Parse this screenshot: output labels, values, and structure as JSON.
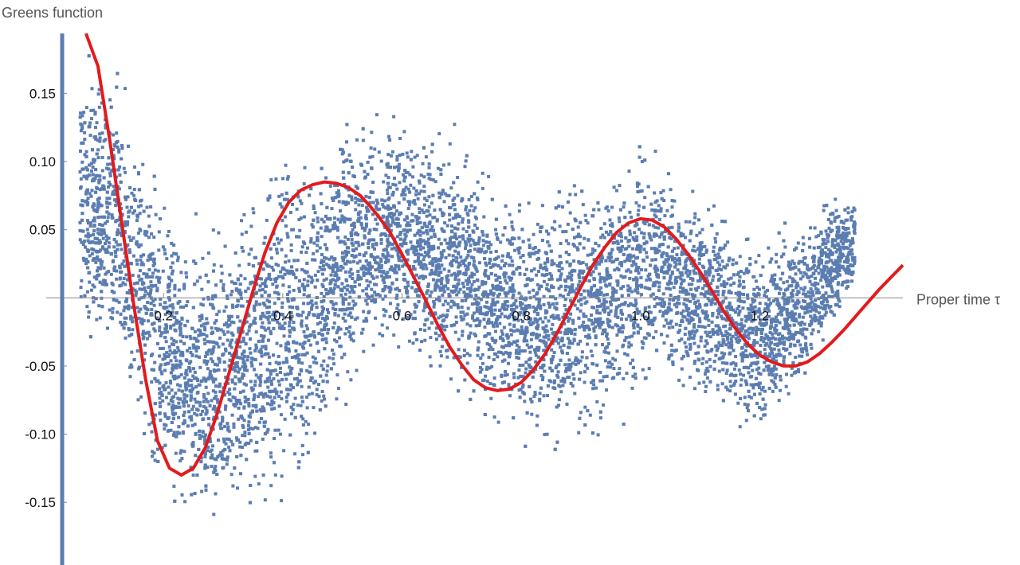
{
  "chart_data": {
    "type": "scatter",
    "title": "",
    "xlabel": "Proper time τ",
    "ylabel": "Greens function",
    "xlim": [
      0.03,
      1.44
    ],
    "ylim": [
      -0.196,
      0.194
    ],
    "x_ticks": [
      0.2,
      0.4,
      0.6,
      0.8,
      1.0,
      1.2
    ],
    "x_tick_labels": [
      "0.2",
      "0.4",
      "0.6",
      "0.8",
      "1.0",
      "1.2"
    ],
    "y_ticks": [
      -0.15,
      -0.1,
      -0.05,
      0.05,
      0.1,
      0.15
    ],
    "y_tick_labels": [
      "-0.15",
      "-0.10",
      "-0.05",
      "0.05",
      "0.10",
      "0.15"
    ],
    "grid": false,
    "series": [
      {
        "kind": "scatter",
        "color": "#5b7db1",
        "approx_point_count": 40000,
        "envelope": [
          {
            "x": 0.06,
            "y_low": -0.03,
            "y_high": 0.19
          },
          {
            "x": 0.12,
            "y_low": -0.07,
            "y_high": 0.18
          },
          {
            "x": 0.16,
            "y_low": -0.12,
            "y_high": 0.13
          },
          {
            "x": 0.2,
            "y_low": -0.16,
            "y_high": 0.09
          },
          {
            "x": 0.24,
            "y_low": -0.18,
            "y_high": 0.06
          },
          {
            "x": 0.28,
            "y_low": -0.19,
            "y_high": 0.06
          },
          {
            "x": 0.32,
            "y_low": -0.18,
            "y_high": 0.08
          },
          {
            "x": 0.36,
            "y_low": -0.17,
            "y_high": 0.1
          },
          {
            "x": 0.4,
            "y_low": -0.17,
            "y_high": 0.12
          },
          {
            "x": 0.44,
            "y_low": -0.15,
            "y_high": 0.12
          },
          {
            "x": 0.48,
            "y_low": -0.1,
            "y_high": 0.13
          },
          {
            "x": 0.52,
            "y_low": -0.07,
            "y_high": 0.14
          },
          {
            "x": 0.56,
            "y_low": -0.05,
            "y_high": 0.14
          },
          {
            "x": 0.6,
            "y_low": -0.04,
            "y_high": 0.14
          },
          {
            "x": 0.64,
            "y_low": -0.06,
            "y_high": 0.13
          },
          {
            "x": 0.68,
            "y_low": -0.08,
            "y_high": 0.13
          },
          {
            "x": 0.72,
            "y_low": -0.09,
            "y_high": 0.11
          },
          {
            "x": 0.76,
            "y_low": -0.1,
            "y_high": 0.09
          },
          {
            "x": 0.8,
            "y_low": -0.11,
            "y_high": 0.08
          },
          {
            "x": 0.84,
            "y_low": -0.12,
            "y_high": 0.09
          },
          {
            "x": 0.88,
            "y_low": -0.12,
            "y_high": 0.1
          },
          {
            "x": 0.92,
            "y_low": -0.11,
            "y_high": 0.11
          },
          {
            "x": 0.96,
            "y_low": -0.1,
            "y_high": 0.11
          },
          {
            "x": 1.0,
            "y_low": -0.08,
            "y_high": 0.12
          },
          {
            "x": 1.04,
            "y_low": -0.07,
            "y_high": 0.11
          },
          {
            "x": 1.08,
            "y_low": -0.08,
            "y_high": 0.1
          },
          {
            "x": 1.12,
            "y_low": -0.09,
            "y_high": 0.08
          },
          {
            "x": 1.16,
            "y_low": -0.1,
            "y_high": 0.06
          },
          {
            "x": 1.2,
            "y_low": -0.11,
            "y_high": 0.05
          },
          {
            "x": 1.24,
            "y_low": -0.09,
            "y_high": 0.06
          },
          {
            "x": 1.28,
            "y_low": -0.07,
            "y_high": 0.07
          },
          {
            "x": 1.32,
            "y_low": -0.03,
            "y_high": 0.08
          },
          {
            "x": 1.36,
            "y_low": 0.0,
            "y_high": 0.08
          }
        ]
      },
      {
        "kind": "line",
        "color": "#e31a1c",
        "x": [
          0.07,
          0.09,
          0.11,
          0.13,
          0.15,
          0.17,
          0.19,
          0.21,
          0.23,
          0.25,
          0.27,
          0.29,
          0.31,
          0.33,
          0.35,
          0.37,
          0.39,
          0.41,
          0.43,
          0.45,
          0.47,
          0.49,
          0.51,
          0.53,
          0.545,
          0.56,
          0.58,
          0.6,
          0.62,
          0.64,
          0.66,
          0.68,
          0.7,
          0.72,
          0.74,
          0.76,
          0.78,
          0.8,
          0.82,
          0.84,
          0.86,
          0.88,
          0.9,
          0.92,
          0.94,
          0.96,
          0.98,
          1.0,
          1.02,
          1.04,
          1.06,
          1.08,
          1.1,
          1.12,
          1.14,
          1.16,
          1.18,
          1.2,
          1.22,
          1.24,
          1.26,
          1.28,
          1.3,
          1.32,
          1.34,
          1.36,
          1.38,
          1.4,
          1.42,
          1.44
        ],
        "y": [
          0.215,
          0.17,
          0.115,
          0.055,
          -0.005,
          -0.06,
          -0.105,
          -0.125,
          -0.13,
          -0.125,
          -0.11,
          -0.085,
          -0.055,
          -0.025,
          0.005,
          0.033,
          0.055,
          0.07,
          0.079,
          0.083,
          0.085,
          0.084,
          0.081,
          0.075,
          0.068,
          0.06,
          0.048,
          0.032,
          0.015,
          -0.002,
          -0.02,
          -0.036,
          -0.049,
          -0.06,
          -0.066,
          -0.068,
          -0.067,
          -0.062,
          -0.053,
          -0.041,
          -0.026,
          -0.009,
          0.008,
          0.024,
          0.037,
          0.048,
          0.055,
          0.058,
          0.057,
          0.052,
          0.043,
          0.032,
          0.019,
          0.005,
          -0.01,
          -0.023,
          -0.034,
          -0.042,
          -0.047,
          -0.05,
          -0.05,
          -0.047,
          -0.041,
          -0.033,
          -0.024,
          -0.014,
          -0.004,
          0.006,
          0.015,
          0.024
        ]
      }
    ]
  }
}
